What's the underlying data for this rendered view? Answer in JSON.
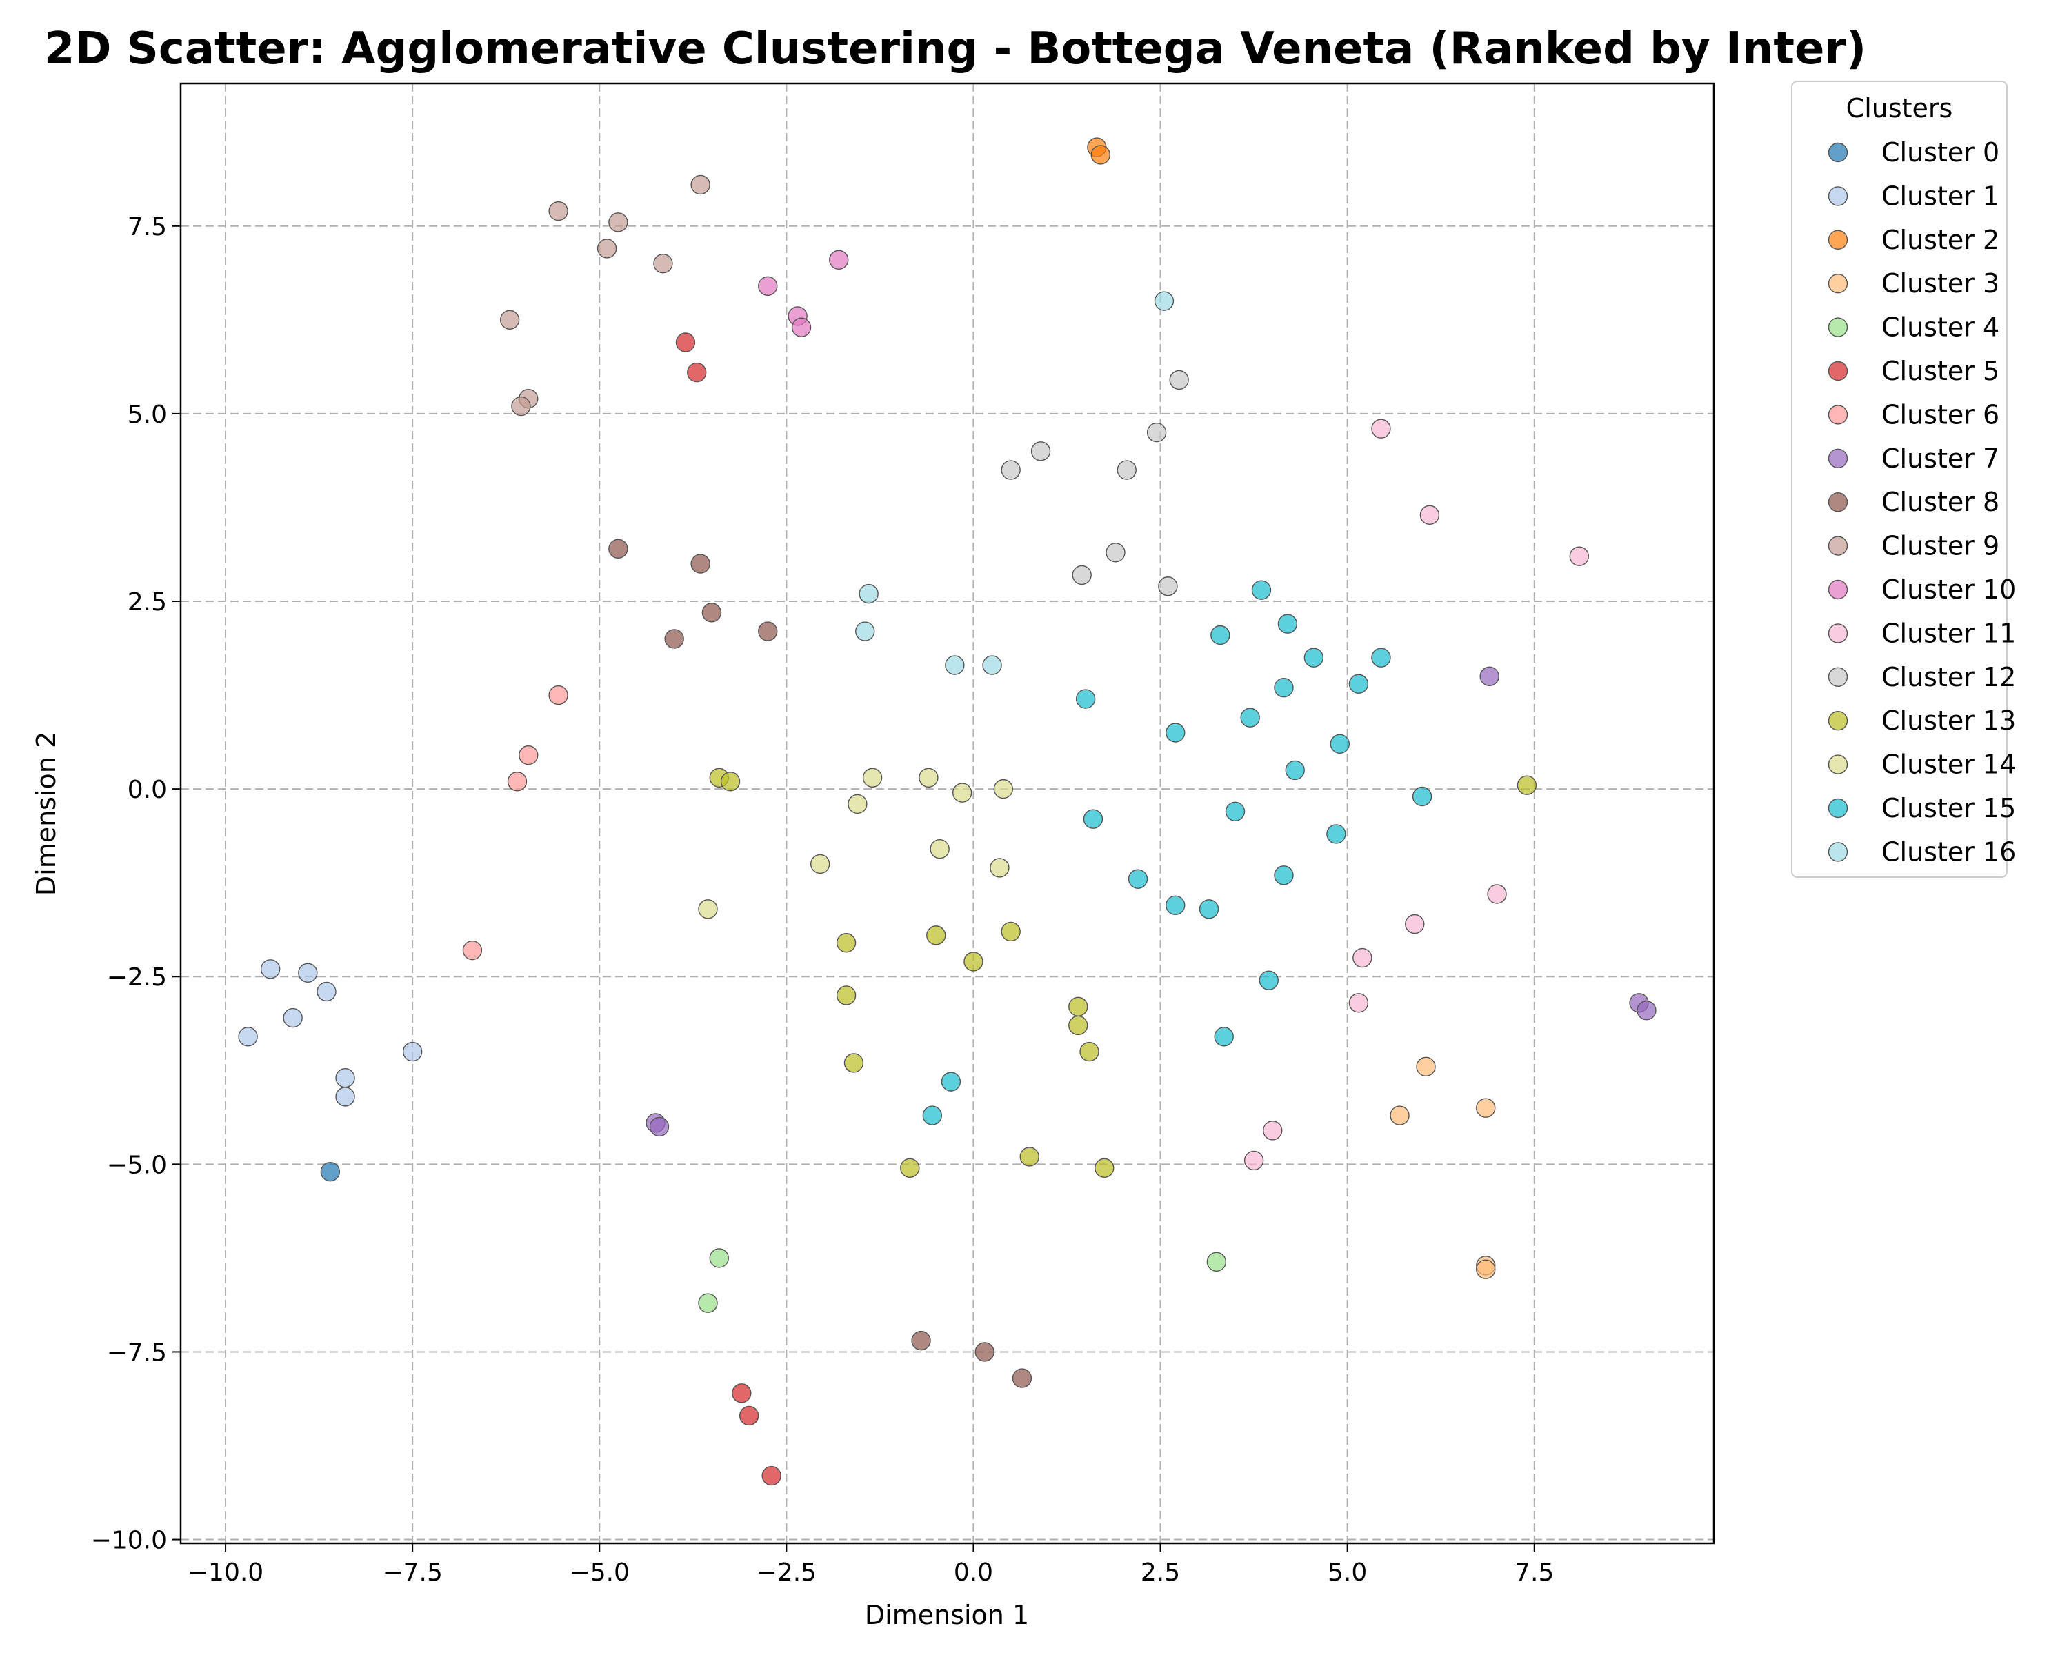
{
  "chart_data": {
    "type": "scatter",
    "title": "2D Scatter: Agglomerative Clustering - Bottega Veneta (Ranked by Inter)",
    "xlabel": "Dimension 1",
    "ylabel": "Dimension 2",
    "xlim": [
      -10.6,
      9.9
    ],
    "ylim": [
      -10.05,
      9.4
    ],
    "xticks": [
      -10.0,
      -7.5,
      -5.0,
      -2.5,
      0.0,
      2.5,
      5.0,
      7.5
    ],
    "yticks": [
      -10.0,
      -7.5,
      -5.0,
      -2.5,
      0.0,
      2.5,
      5.0,
      7.5
    ],
    "xtick_labels": [
      "−10.0",
      "−7.5",
      "−5.0",
      "−2.5",
      "0.0",
      "2.5",
      "5.0",
      "7.5"
    ],
    "ytick_labels": [
      "−10.0",
      "−7.5",
      "−5.0",
      "−2.5",
      "0.0",
      "2.5",
      "5.0",
      "7.5"
    ],
    "grid": true,
    "legend": {
      "title": "Clusters",
      "placement": "outside-right-top"
    },
    "series": [
      {
        "name": "Cluster 0",
        "color": "#1f77b4",
        "points": [
          [
            -8.6,
            -5.1
          ]
        ]
      },
      {
        "name": "Cluster 1",
        "color": "#aec7e8",
        "points": [
          [
            -9.7,
            -3.3
          ],
          [
            -9.4,
            -2.4
          ],
          [
            -9.1,
            -3.05
          ],
          [
            -8.9,
            -2.45
          ],
          [
            -8.65,
            -2.7
          ],
          [
            -8.4,
            -3.85
          ],
          [
            -8.4,
            -4.1
          ],
          [
            -7.5,
            -3.5
          ]
        ]
      },
      {
        "name": "Cluster 2",
        "color": "#ff7f0e",
        "points": [
          [
            1.65,
            8.55
          ],
          [
            1.7,
            8.45
          ]
        ]
      },
      {
        "name": "Cluster 3",
        "color": "#ffbb78",
        "points": [
          [
            5.7,
            -4.35
          ],
          [
            6.05,
            -3.7
          ],
          [
            6.85,
            -4.25
          ],
          [
            6.85,
            -6.35
          ],
          [
            6.85,
            -6.4
          ]
        ]
      },
      {
        "name": "Cluster 4",
        "color": "#98df8a",
        "points": [
          [
            -3.4,
            -6.25
          ],
          [
            -3.55,
            -6.85
          ],
          [
            3.25,
            -6.3
          ]
        ]
      },
      {
        "name": "Cluster 5",
        "color": "#d62728",
        "points": [
          [
            -3.85,
            5.95
          ],
          [
            -3.7,
            5.55
          ],
          [
            -3.1,
            -8.05
          ],
          [
            -3.0,
            -8.35
          ],
          [
            -2.7,
            -9.15
          ]
        ]
      },
      {
        "name": "Cluster 6",
        "color": "#ff9896",
        "points": [
          [
            -5.55,
            1.25
          ],
          [
            -5.95,
            0.45
          ],
          [
            -6.1,
            0.1
          ],
          [
            -6.7,
            -2.15
          ]
        ]
      },
      {
        "name": "Cluster 7",
        "color": "#9467bd",
        "points": [
          [
            -4.25,
            -4.45
          ],
          [
            -4.2,
            -4.5
          ],
          [
            6.9,
            1.5
          ],
          [
            8.9,
            -2.85
          ],
          [
            9.0,
            -2.95
          ]
        ]
      },
      {
        "name": "Cluster 8",
        "color": "#8c564b",
        "points": [
          [
            -4.75,
            3.2
          ],
          [
            -3.65,
            3.0
          ],
          [
            -3.5,
            2.35
          ],
          [
            -4.0,
            2.0
          ],
          [
            -2.75,
            2.1
          ],
          [
            -0.7,
            -7.35
          ],
          [
            0.15,
            -7.5
          ],
          [
            0.65,
            -7.85
          ]
        ]
      },
      {
        "name": "Cluster 9",
        "color": "#c49c94",
        "points": [
          [
            -3.65,
            8.05
          ],
          [
            -5.55,
            7.7
          ],
          [
            -4.75,
            7.55
          ],
          [
            -4.9,
            7.2
          ],
          [
            -4.15,
            7.0
          ],
          [
            -6.2,
            6.25
          ],
          [
            -5.95,
            5.2
          ],
          [
            -6.05,
            5.1
          ]
        ]
      },
      {
        "name": "Cluster 10",
        "color": "#e377c2",
        "points": [
          [
            -1.8,
            7.05
          ],
          [
            -2.75,
            6.7
          ],
          [
            -2.35,
            6.3
          ],
          [
            -2.3,
            6.15
          ]
        ]
      },
      {
        "name": "Cluster 11",
        "color": "#f7b6d2",
        "points": [
          [
            5.45,
            4.8
          ],
          [
            6.1,
            3.65
          ],
          [
            8.1,
            3.1
          ],
          [
            7.0,
            -1.4
          ],
          [
            5.9,
            -1.8
          ],
          [
            5.2,
            -2.25
          ],
          [
            5.15,
            -2.85
          ],
          [
            4.0,
            -4.55
          ],
          [
            3.75,
            -4.95
          ]
        ]
      },
      {
        "name": "Cluster 12",
        "color": "#c7c7c7",
        "points": [
          [
            2.75,
            5.45
          ],
          [
            2.45,
            4.75
          ],
          [
            0.9,
            4.5
          ],
          [
            0.5,
            4.25
          ],
          [
            2.05,
            4.25
          ],
          [
            1.9,
            3.15
          ],
          [
            1.45,
            2.85
          ],
          [
            2.6,
            2.7
          ]
        ]
      },
      {
        "name": "Cluster 13",
        "color": "#bcbd22",
        "points": [
          [
            -3.4,
            0.15
          ],
          [
            -3.25,
            0.1
          ],
          [
            7.4,
            0.05
          ],
          [
            -1.7,
            -2.05
          ],
          [
            -0.5,
            -1.95
          ],
          [
            0.5,
            -1.9
          ],
          [
            0.0,
            -2.3
          ],
          [
            -1.7,
            -2.75
          ],
          [
            1.4,
            -2.9
          ],
          [
            1.4,
            -3.15
          ],
          [
            1.55,
            -3.5
          ],
          [
            -1.6,
            -3.65
          ],
          [
            -0.85,
            -5.05
          ],
          [
            0.75,
            -4.9
          ],
          [
            1.75,
            -5.05
          ]
        ]
      },
      {
        "name": "Cluster 14",
        "color": "#dbdb8d",
        "points": [
          [
            -1.35,
            0.15
          ],
          [
            -0.6,
            0.15
          ],
          [
            -0.15,
            -0.05
          ],
          [
            0.4,
            0.0
          ],
          [
            -1.55,
            -0.2
          ],
          [
            -0.45,
            -0.8
          ],
          [
            -2.05,
            -1.0
          ],
          [
            0.35,
            -1.05
          ],
          [
            -3.55,
            -1.6
          ]
        ]
      },
      {
        "name": "Cluster 15",
        "color": "#17becf",
        "points": [
          [
            3.85,
            2.65
          ],
          [
            4.2,
            2.2
          ],
          [
            3.3,
            2.05
          ],
          [
            4.55,
            1.75
          ],
          [
            5.45,
            1.75
          ],
          [
            5.15,
            1.4
          ],
          [
            4.15,
            1.35
          ],
          [
            1.5,
            1.2
          ],
          [
            3.7,
            0.95
          ],
          [
            2.7,
            0.75
          ],
          [
            4.9,
            0.6
          ],
          [
            4.3,
            0.25
          ],
          [
            6.0,
            -0.1
          ],
          [
            3.5,
            -0.3
          ],
          [
            1.6,
            -0.4
          ],
          [
            4.85,
            -0.6
          ],
          [
            4.15,
            -1.15
          ],
          [
            2.2,
            -1.2
          ],
          [
            2.7,
            -1.55
          ],
          [
            3.15,
            -1.6
          ],
          [
            3.95,
            -2.55
          ],
          [
            3.35,
            -3.3
          ],
          [
            -0.3,
            -3.9
          ],
          [
            -0.55,
            -4.35
          ]
        ]
      },
      {
        "name": "Cluster 16",
        "color": "#9edae5",
        "points": [
          [
            2.55,
            6.5
          ],
          [
            -1.4,
            2.6
          ],
          [
            -1.45,
            2.1
          ],
          [
            -0.25,
            1.65
          ],
          [
            0.25,
            1.65
          ]
        ]
      }
    ]
  }
}
